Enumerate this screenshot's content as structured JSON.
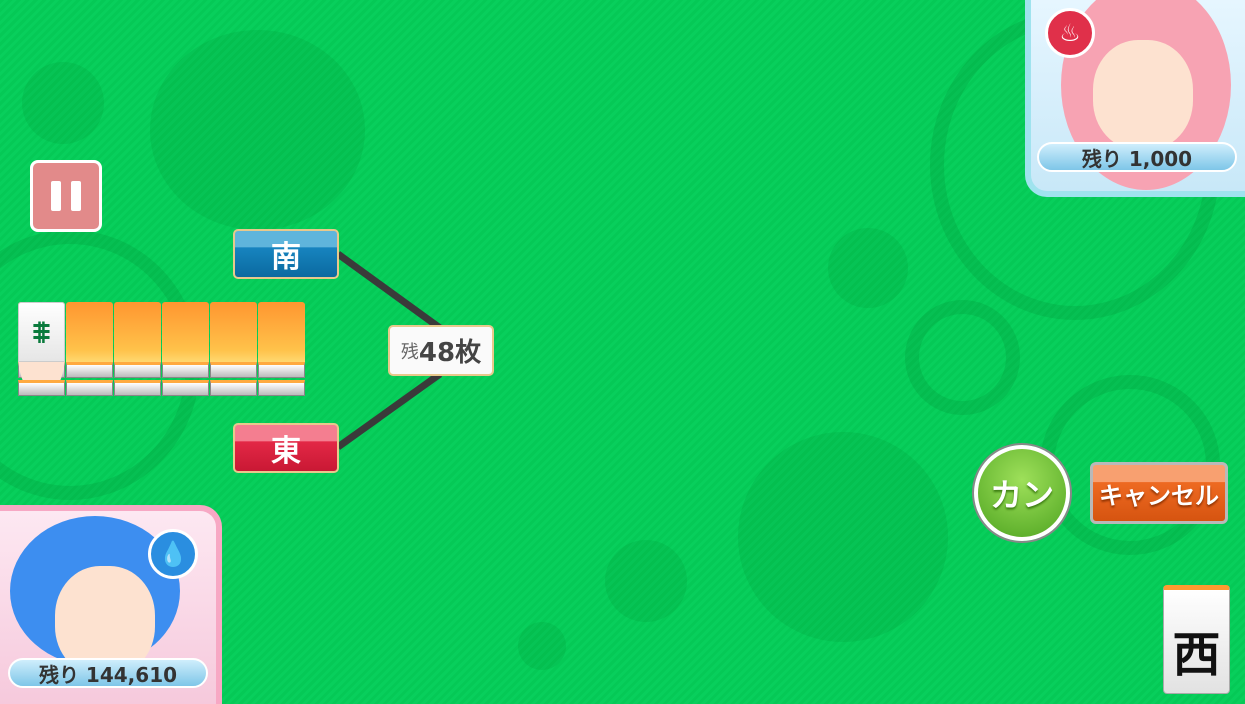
{
  "pause_button": {
    "icon": "pause-icon"
  },
  "seats": {
    "south": "南",
    "east": "東"
  },
  "wall": {
    "remaining_prefix": "残",
    "remaining_count": "48枚",
    "dora_indicator": "八索"
  },
  "opponent": {
    "score_label": "残り 1,000",
    "element_icon": "fire-icon",
    "element_color": "#e0304a"
  },
  "player": {
    "score_label": "残り 144,610",
    "element_icon": "water-icon",
    "element_color": "#2a8ee0"
  },
  "actions": {
    "kan_label": "カン",
    "cancel_label": "キャンセル"
  },
  "drawn_tile": {
    "label": "西"
  },
  "colors": {
    "table": "#05c956",
    "south": "#1784bf",
    "east": "#e32846",
    "tile_back": "#ff9630"
  }
}
